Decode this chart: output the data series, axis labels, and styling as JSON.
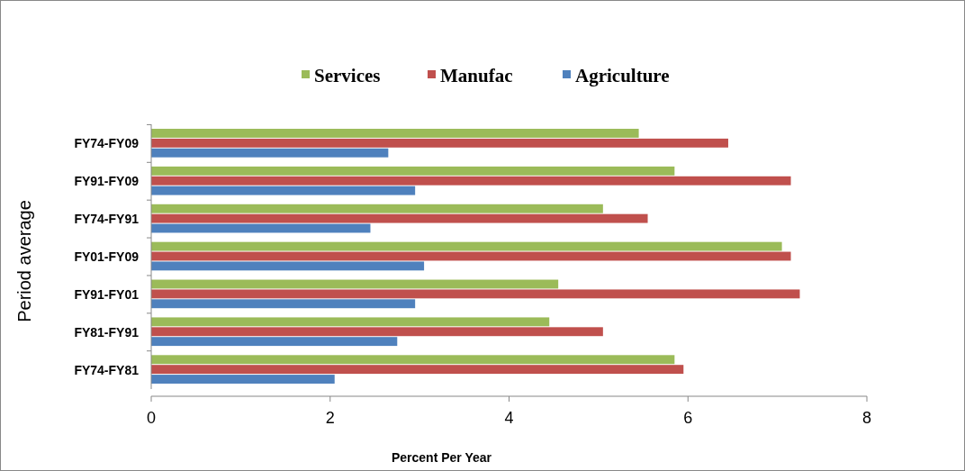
{
  "chart_data": {
    "type": "bar",
    "orientation": "horizontal",
    "xlabel": "Percent Per Year",
    "ylabel": "Period average",
    "categories": [
      "FY74-FY09",
      "FY91-FY09",
      "FY74-FY91",
      "FY01-FY09",
      "FY91-FY01",
      "FY81-FY91",
      "FY74-FY81"
    ],
    "series": [
      {
        "name": "Services",
        "color": "#9bbb59",
        "values": [
          5.45,
          5.85,
          5.05,
          7.05,
          4.55,
          4.45,
          5.85
        ]
      },
      {
        "name": "Manufac",
        "color": "#c0504d",
        "values": [
          6.45,
          7.15,
          5.55,
          7.15,
          7.25,
          5.05,
          5.95
        ]
      },
      {
        "name": "Agriculture",
        "color": "#4f81bd",
        "values": [
          2.65,
          2.95,
          2.45,
          3.05,
          2.95,
          2.75,
          2.05
        ]
      }
    ],
    "xlim": [
      0,
      8
    ],
    "xticks": [
      0,
      2,
      4,
      6,
      8
    ],
    "grid": false,
    "legend": "top"
  }
}
